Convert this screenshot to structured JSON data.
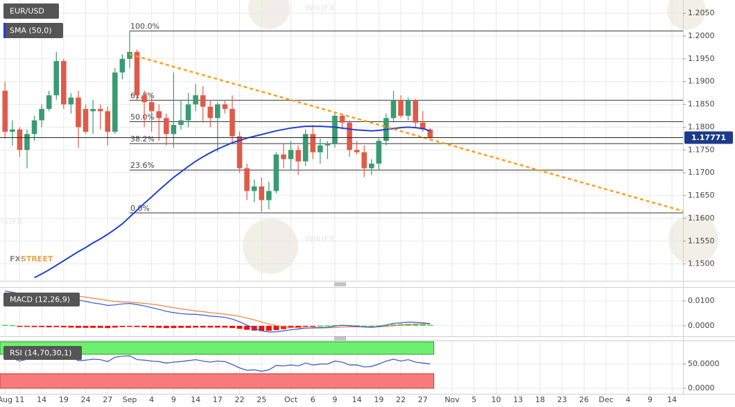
{
  "chart_data": {
    "type": "candlestick",
    "symbol": "EUR/USD",
    "brand": "FXSTREET",
    "watermark": "WikiFX",
    "categories": [
      "Aug",
      null,
      "11",
      null,
      null,
      "14",
      null,
      null,
      "19",
      null,
      null,
      "24",
      null,
      null,
      "27",
      null,
      null,
      "Sep",
      null,
      null,
      "4",
      null,
      null,
      "9",
      null,
      null,
      "14",
      null,
      null,
      "17",
      null,
      null,
      "22",
      null,
      null,
      "25",
      null,
      null,
      null,
      "Oct",
      null,
      null,
      "6",
      null,
      null,
      "9",
      null,
      null,
      "14",
      null,
      null,
      "19",
      null,
      null,
      "22",
      null,
      null,
      "27",
      null,
      null,
      null,
      "Nov",
      null,
      null,
      "5",
      null,
      null,
      "10",
      null,
      null,
      "13",
      null,
      null,
      "18",
      null,
      null,
      "23",
      null,
      null,
      "26",
      null,
      null,
      "Dec",
      null,
      null,
      "4",
      null,
      null,
      "9",
      null,
      null,
      "14",
      null
    ],
    "open": [
      1.188,
      1.179,
      1.1795,
      1.175,
      1.1785,
      1.1815,
      1.184,
      1.187,
      1.1945,
      1.185,
      1.1865,
      1.184,
      1.1835,
      1.184,
      1.1835,
      1.179,
      1.192,
      1.195,
      1.1965,
      1.187,
      1.1855,
      1.1835,
      1.182,
      1.1785,
      1.1805,
      1.1815,
      1.185,
      1.187,
      1.1845,
      1.182,
      1.185,
      1.184,
      1.178,
      1.171,
      1.166,
      1.167,
      1.164,
      1.166,
      1.174,
      1.173,
      1.175,
      1.1725,
      1.1785,
      1.1745,
      1.176,
      1.1765,
      1.1825,
      1.181,
      1.175,
      1.1745,
      1.171,
      1.172,
      1.177,
      1.182,
      1.186,
      1.1825,
      1.186,
      1.181,
      1.1795,
      null,
      null,
      null,
      null,
      null,
      null,
      null,
      null,
      null,
      null,
      null,
      null,
      null,
      null,
      null,
      null,
      null,
      null,
      null,
      null,
      null,
      null,
      null,
      null,
      null,
      null,
      null,
      null,
      null,
      null,
      null,
      null,
      null,
      null
    ],
    "high": [
      1.19,
      1.1815,
      1.18,
      1.1795,
      1.1825,
      1.185,
      1.188,
      1.1965,
      1.195,
      1.1875,
      1.188,
      1.185,
      1.186,
      1.185,
      1.1845,
      1.193,
      1.196,
      1.2011,
      1.197,
      1.188,
      1.187,
      1.185,
      1.183,
      1.192,
      1.186,
      1.1875,
      1.1895,
      1.189,
      1.186,
      1.1855,
      1.186,
      1.187,
      1.179,
      1.172,
      1.1685,
      1.169,
      1.168,
      1.1745,
      1.1765,
      1.177,
      1.176,
      1.1795,
      1.1805,
      1.1775,
      1.177,
      1.183,
      1.183,
      1.1815,
      1.177,
      1.176,
      1.173,
      1.1775,
      1.183,
      1.188,
      1.187,
      1.1865,
      1.1862,
      1.1835,
      1.1798,
      null,
      null,
      null,
      null,
      null,
      null,
      null,
      null,
      null,
      null,
      null,
      null,
      null,
      null,
      null,
      null,
      null,
      null,
      null,
      null,
      null,
      null,
      null,
      null,
      null,
      null,
      null,
      null,
      null,
      null,
      null,
      null,
      null,
      null
    ],
    "low": [
      1.1775,
      1.176,
      1.1735,
      1.171,
      1.177,
      1.18,
      1.1835,
      1.186,
      1.184,
      1.183,
      1.1755,
      1.1785,
      1.1785,
      1.1795,
      1.176,
      1.1785,
      1.1905,
      1.193,
      1.186,
      1.18,
      1.179,
      1.177,
      1.176,
      1.1755,
      1.1795,
      1.18,
      1.1835,
      1.181,
      1.18,
      1.1745,
      1.183,
      1.1765,
      1.17,
      1.164,
      1.1635,
      1.1615,
      1.162,
      1.1655,
      1.171,
      1.1705,
      1.1695,
      1.1715,
      1.173,
      1.172,
      1.173,
      1.1755,
      1.1795,
      1.1735,
      1.174,
      1.169,
      1.1695,
      1.1705,
      1.176,
      1.181,
      1.182,
      1.1815,
      1.18,
      1.179,
      1.177,
      null,
      null,
      null,
      null,
      null,
      null,
      null,
      null,
      null,
      null,
      null,
      null,
      null,
      null,
      null,
      null,
      null,
      null,
      null,
      null,
      null,
      null,
      null,
      null,
      null,
      null,
      null,
      null,
      null,
      null,
      null,
      null,
      null,
      null
    ],
    "close": [
      1.179,
      1.1795,
      1.175,
      1.1785,
      1.1815,
      1.184,
      1.187,
      1.1945,
      1.185,
      1.1865,
      1.18,
      1.179,
      1.184,
      1.1835,
      1.179,
      1.192,
      1.195,
      1.1965,
      1.187,
      1.1855,
      1.1835,
      1.182,
      1.1785,
      1.1805,
      1.1815,
      1.185,
      1.187,
      1.1845,
      1.182,
      1.185,
      1.184,
      1.178,
      1.171,
      1.166,
      1.167,
      1.164,
      1.166,
      1.174,
      1.173,
      1.175,
      1.1725,
      1.1785,
      1.1745,
      1.176,
      1.1765,
      1.1825,
      1.181,
      1.175,
      1.1745,
      1.171,
      1.172,
      1.177,
      1.182,
      1.186,
      1.1825,
      1.186,
      1.181,
      1.1795,
      1.17771,
      null,
      null,
      null,
      null,
      null,
      null,
      null,
      null,
      null,
      null,
      null,
      null,
      null,
      null,
      null,
      null,
      null,
      null,
      null,
      null,
      null,
      null,
      null,
      null,
      null,
      null,
      null,
      null,
      null,
      null,
      null,
      null,
      null,
      null
    ],
    "up_color": "#3a9a72",
    "down_color": "#e05a4a",
    "series": [
      {
        "name": "SMA (50,0)",
        "color": "#1f3fd6",
        "values": [
          null,
          null,
          null,
          null,
          1.147,
          1.1478,
          1.1487,
          1.1497,
          1.1507,
          1.1517,
          1.1527,
          1.1536,
          1.1546,
          1.1555,
          1.1565,
          1.1576,
          1.1588,
          1.1603,
          1.1618,
          1.1633,
          1.1647,
          1.1662,
          1.1676,
          1.169,
          1.1702,
          1.1714,
          1.1725,
          1.1735,
          1.1744,
          1.1752,
          1.1759,
          1.1766,
          1.1771,
          1.1776,
          1.178,
          1.1784,
          1.1788,
          1.1792,
          1.1795,
          1.1798,
          1.18,
          1.1802,
          1.1802,
          1.1802,
          1.1801,
          1.18,
          1.1798,
          1.1796,
          1.1794,
          1.1793,
          1.1792,
          1.1793,
          1.1795,
          1.1797,
          1.1799,
          1.18,
          1.1799,
          1.1797,
          1.1792,
          null,
          null,
          null,
          null,
          null,
          null,
          null,
          null,
          null,
          null,
          null,
          null,
          null,
          null,
          null,
          null,
          null,
          null,
          null,
          null,
          null,
          null,
          null,
          null,
          null,
          null,
          null,
          null,
          null,
          null,
          null,
          null,
          null,
          null
        ]
      }
    ],
    "current_price": 1.17771,
    "current_price_color": "#1c3a8c",
    "fibonacci": [
      {
        "label": "100.0%",
        "value": 1.2011
      },
      {
        "label": "61.8%",
        "value": 1.1859
      },
      {
        "label": "50.0%",
        "value": 1.1812
      },
      {
        "label": "38.2%",
        "value": 1.1764
      },
      {
        "label": "23.6%",
        "value": 1.1706
      },
      {
        "label": "0.0%",
        "value": 1.1612
      }
    ],
    "trendline": {
      "color": "#f5a023",
      "start": 1.196,
      "end": 1.1616
    },
    "ylim": [
      1.1463,
      1.2079
    ],
    "yticks": [
      {
        "value": 1.205,
        "label": "1.2050"
      },
      {
        "value": 1.2,
        "label": "1.2000"
      },
      {
        "value": 1.195,
        "label": "1.1950"
      },
      {
        "value": 1.19,
        "label": "1.1900"
      },
      {
        "value": 1.185,
        "label": "1.1850"
      },
      {
        "value": 1.18,
        "label": "1.1800"
      },
      {
        "value": 1.175,
        "label": "1.1750"
      },
      {
        "value": 1.17,
        "label": "1.1700"
      },
      {
        "value": 1.165,
        "label": "1.1650"
      },
      {
        "value": 1.16,
        "label": "1.1600"
      },
      {
        "value": 1.155,
        "label": "1.1550"
      },
      {
        "value": 1.15,
        "label": "1.1500"
      }
    ],
    "grid": true,
    "macd": {
      "label": "MACD (12,26,9)",
      "ylim": [
        -0.0042,
        0.0153
      ],
      "yticks": [
        {
          "value": 0.01,
          "label": "0.0100"
        },
        {
          "value": 0,
          "label": "0.0000"
        }
      ],
      "macd_line": {
        "color": "#3456cc",
        "values": [
          0.014,
          0.0135,
          0.013,
          0.0125,
          0.0121,
          0.0118,
          0.0116,
          0.0118,
          0.0117,
          0.0112,
          0.0104,
          0.0098,
          0.0092,
          0.0088,
          0.0082,
          0.0084,
          0.0088,
          0.009,
          0.0086,
          0.008,
          0.0073,
          0.0066,
          0.0058,
          0.0053,
          0.0049,
          0.0047,
          0.0046,
          0.0043,
          0.0039,
          0.0037,
          0.0034,
          0.0027,
          0.0016,
          0.0003,
          -0.001,
          -0.002,
          -0.0025,
          -0.0024,
          -0.002,
          -0.0016,
          -0.0013,
          -0.0009,
          -0.0008,
          -0.0007,
          -0.0006,
          -0.0001,
          0.0002,
          0,
          -0.0002,
          -0.0005,
          -0.0006,
          -0.0003,
          0.0003,
          0.001,
          0.0012,
          0.0015,
          0.0014,
          0.0012,
          0.0009,
          null,
          null,
          null,
          null,
          null,
          null,
          null,
          null,
          null,
          null,
          null,
          null,
          null,
          null,
          null,
          null,
          null,
          null,
          null,
          null,
          null,
          null,
          null,
          null,
          null,
          null,
          null,
          null,
          null,
          null,
          null,
          null,
          null,
          null
        ]
      },
      "signal_line": {
        "color": "#e8843a",
        "values": [
          0.013,
          0.0131,
          0.0131,
          0.0131,
          0.013,
          0.0128,
          0.0126,
          0.0125,
          0.0124,
          0.0122,
          0.0119,
          0.0115,
          0.0111,
          0.0107,
          0.0102,
          0.0098,
          0.0096,
          0.0095,
          0.0093,
          0.009,
          0.0087,
          0.0083,
          0.0078,
          0.0073,
          0.0068,
          0.0064,
          0.006,
          0.0057,
          0.0053,
          0.005,
          0.0047,
          0.0043,
          0.0038,
          0.0031,
          0.0024,
          0.0015,
          0.0007,
          0.0001,
          -0.0003,
          -0.0006,
          -0.0008,
          -0.0009,
          -0.0009,
          -0.0009,
          -0.0008,
          -0.0007,
          -0.0005,
          -0.0004,
          -0.0004,
          -0.0004,
          -0.0004,
          -0.0004,
          -0.0002,
          0,
          0.0003,
          0.0005,
          0.0007,
          0.0008,
          0.0008,
          null,
          null,
          null,
          null,
          null,
          null,
          null,
          null,
          null,
          null,
          null,
          null,
          null,
          null,
          null,
          null,
          null,
          null,
          null,
          null,
          null,
          null,
          null,
          null,
          null,
          null,
          null,
          null,
          null,
          null,
          null,
          null,
          null,
          null
        ]
      },
      "histogram": {
        "up_color": "#3fd96a",
        "down_color": "#ee1111",
        "values": [
          0.0004,
          0.0003,
          -0.0002,
          -0.0004,
          -0.0005,
          -0.0005,
          -0.0006,
          -0.0005,
          -0.0006,
          -0.0007,
          -0.0008,
          -0.0008,
          -0.0008,
          -0.0008,
          -0.0009,
          -0.0007,
          -0.0005,
          -0.0004,
          -0.0005,
          -0.0006,
          -0.0007,
          -0.0008,
          -0.0009,
          -0.0009,
          -0.0008,
          -0.0008,
          -0.0007,
          -0.0007,
          -0.0007,
          -0.0007,
          -0.0007,
          -0.0009,
          -0.0012,
          -0.0016,
          -0.0019,
          -0.0021,
          -0.002,
          -0.0017,
          -0.0013,
          -0.0009,
          -0.0006,
          -0.0003,
          -0.0001,
          0.0001,
          0.0002,
          0.0003,
          0.0004,
          0.0003,
          0.0002,
          0.0001,
          0.0001,
          0.0002,
          0.0004,
          0.0006,
          0.0007,
          0.0008,
          0.0007,
          0.0006,
          0.0004,
          null,
          null,
          null,
          null,
          null,
          null,
          null,
          null,
          null,
          null,
          null,
          null,
          null,
          null,
          null,
          null,
          null,
          null,
          null,
          null,
          null,
          null,
          null,
          null,
          null,
          null,
          null,
          null,
          null,
          null,
          null,
          null,
          null,
          null
        ]
      }
    },
    "rsi": {
      "label": "RSI (14,70,30,1)",
      "ylim": [
        -11.4,
        97.1
      ],
      "yticks": [
        {
          "value": 50,
          "label": "50.0000"
        },
        {
          "value": 0,
          "label": "0.0000"
        }
      ],
      "overbought": 70,
      "oversold": 30,
      "overbought_color": "#6df06d",
      "oversold_color": "#f77b7b",
      "color": "#3350c8",
      "values": [
        66,
        62,
        56,
        60,
        63,
        65,
        67,
        72,
        63,
        64,
        57,
        58,
        60,
        59,
        55,
        64,
        66,
        67,
        59,
        58,
        56,
        55,
        52,
        54,
        55,
        57,
        59,
        56,
        54,
        56,
        55,
        49,
        42,
        37,
        38,
        35,
        38,
        47,
        46,
        48,
        46,
        52,
        48,
        50,
        50,
        56,
        54,
        48,
        48,
        44,
        45,
        50,
        56,
        60,
        56,
        59,
        54,
        52,
        50,
        null,
        null,
        null,
        null,
        null,
        null,
        null,
        null,
        null,
        null,
        null,
        null,
        null,
        null,
        null,
        null,
        null,
        null,
        null,
        null,
        null,
        null,
        null,
        null,
        null,
        null,
        null,
        null,
        null,
        null,
        null,
        null,
        null,
        null
      ]
    }
  }
}
